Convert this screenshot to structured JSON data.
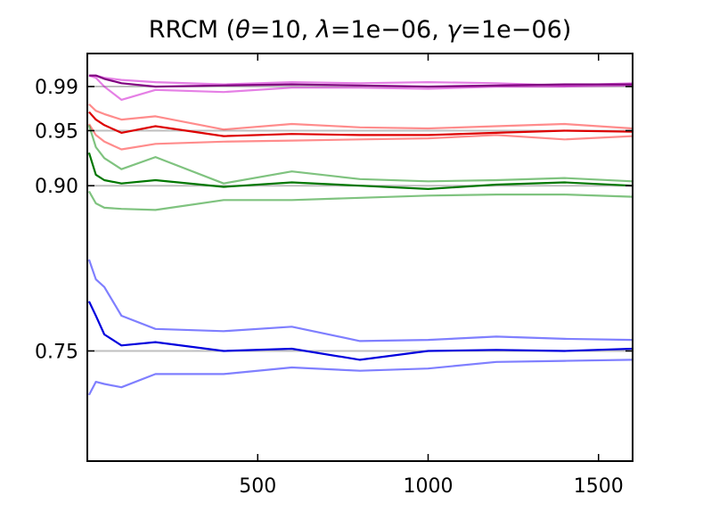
{
  "chart_data": {
    "type": "line",
    "title": "RRCM ",
    "title_math": {
      "open": "(",
      "parts": [
        {
          "sym": "θ",
          "rest": "=10, "
        },
        {
          "sym": "λ",
          "rest": "=1e−06, "
        },
        {
          "sym": "γ",
          "rest": "=1e−06"
        }
      ],
      "close": ")"
    },
    "xlabel": "",
    "ylabel": "",
    "xlim": [
      0,
      1600
    ],
    "ylim": [
      0.65,
      1.02
    ],
    "x_ticks": [
      500,
      1000,
      1500
    ],
    "y_ticks": [
      "0.75",
      "0.90",
      "0.95",
      "0.99"
    ],
    "reference_lines": [
      0.75,
      0.9,
      0.95,
      0.99
    ],
    "grid": false,
    "reference_line_color": "#bfbfbf",
    "x": [
      5,
      25,
      50,
      100,
      200,
      400,
      600,
      800,
      1000,
      1200,
      1400,
      1600
    ],
    "series": [
      {
        "group": "purple",
        "role": "main",
        "color": "#800080",
        "alpha": 1.0,
        "values": [
          1.0,
          1.0,
          0.997,
          0.993,
          0.99,
          0.991,
          0.992,
          0.991,
          0.99,
          0.991,
          0.992,
          0.992
        ]
      },
      {
        "group": "purple",
        "role": "bound",
        "color": "#cc00cc",
        "alpha": 0.5,
        "values": [
          1.0,
          1.0,
          0.998,
          0.996,
          0.994,
          0.992,
          0.994,
          0.993,
          0.994,
          0.993,
          0.991,
          0.993
        ]
      },
      {
        "group": "purple",
        "role": "bound",
        "color": "#cc00cc",
        "alpha": 0.5,
        "values": [
          1.0,
          0.998,
          0.99,
          0.978,
          0.987,
          0.985,
          0.989,
          0.989,
          0.988,
          0.99,
          0.99,
          0.991
        ]
      },
      {
        "group": "red",
        "role": "main",
        "color": "#dd0000",
        "alpha": 1.0,
        "values": [
          0.967,
          0.96,
          0.955,
          0.948,
          0.954,
          0.945,
          0.947,
          0.946,
          0.946,
          0.948,
          0.95,
          0.949
        ]
      },
      {
        "group": "red",
        "role": "bound",
        "color": "#ff0000",
        "alpha": 0.45,
        "values": [
          0.974,
          0.968,
          0.965,
          0.96,
          0.963,
          0.951,
          0.956,
          0.953,
          0.952,
          0.954,
          0.956,
          0.952
        ]
      },
      {
        "group": "red",
        "role": "bound",
        "color": "#ff0000",
        "alpha": 0.45,
        "values": [
          0.956,
          0.946,
          0.94,
          0.933,
          0.938,
          0.94,
          0.941,
          0.942,
          0.943,
          0.946,
          0.942,
          0.945
        ]
      },
      {
        "group": "green",
        "role": "main",
        "color": "#007700",
        "alpha": 1.0,
        "values": [
          0.93,
          0.91,
          0.905,
          0.902,
          0.905,
          0.899,
          0.903,
          0.9,
          0.897,
          0.901,
          0.903,
          0.9
        ]
      },
      {
        "group": "green",
        "role": "bound",
        "color": "#008800",
        "alpha": 0.5,
        "values": [
          0.955,
          0.935,
          0.925,
          0.915,
          0.926,
          0.902,
          0.913,
          0.906,
          0.904,
          0.905,
          0.907,
          0.904
        ]
      },
      {
        "group": "green",
        "role": "bound",
        "color": "#008800",
        "alpha": 0.5,
        "values": [
          0.895,
          0.884,
          0.88,
          0.879,
          0.878,
          0.887,
          0.887,
          0.889,
          0.891,
          0.892,
          0.892,
          0.89
        ]
      },
      {
        "group": "blue",
        "role": "main",
        "color": "#0000dd",
        "alpha": 1.0,
        "values": [
          0.795,
          0.782,
          0.765,
          0.755,
          0.758,
          0.75,
          0.752,
          0.742,
          0.75,
          0.751,
          0.75,
          0.752
        ]
      },
      {
        "group": "blue",
        "role": "bound",
        "color": "#0000ff",
        "alpha": 0.5,
        "values": [
          0.833,
          0.815,
          0.808,
          0.782,
          0.77,
          0.768,
          0.772,
          0.759,
          0.76,
          0.763,
          0.761,
          0.76
        ]
      },
      {
        "group": "blue",
        "role": "bound",
        "color": "#0000ff",
        "alpha": 0.5,
        "values": [
          0.71,
          0.722,
          0.72,
          0.717,
          0.729,
          0.729,
          0.735,
          0.732,
          0.734,
          0.74,
          0.741,
          0.742
        ]
      }
    ]
  }
}
